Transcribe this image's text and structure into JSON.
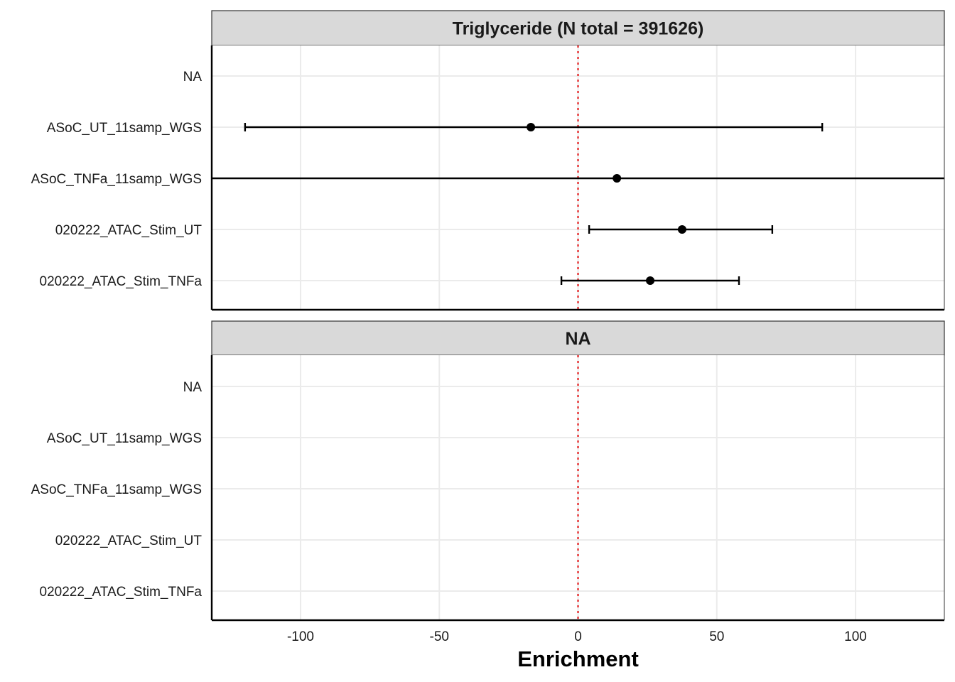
{
  "chart_data": {
    "type": "forest",
    "xlabel": "Enrichment",
    "xlim": [
      -132,
      132
    ],
    "xticks": [
      -100,
      -50,
      0,
      50,
      100
    ],
    "xtick_labels": [
      "-100",
      "-50",
      "0",
      "50",
      "100"
    ],
    "reference_line": {
      "x": 0,
      "color": "#e31a1c",
      "style": "dotted"
    },
    "categories": [
      "NA",
      "ASoC_UT_11samp_WGS",
      "ASoC_TNFa_11samp_WGS",
      "020222_ATAC_Stim_UT",
      "020222_ATAC_Stim_TNFa"
    ],
    "grid": true,
    "facets": [
      {
        "title": "Triglyceride (N total = 391626)",
        "points": [
          {
            "category": "ASoC_UT_11samp_WGS",
            "estimate": -17,
            "lower": -120,
            "upper": 88
          },
          {
            "category": "ASoC_TNFa_11samp_WGS",
            "estimate": 14,
            "lower": -200,
            "upper": 200
          },
          {
            "category": "020222_ATAC_Stim_UT",
            "estimate": 37.5,
            "lower": 4,
            "upper": 70
          },
          {
            "category": "020222_ATAC_Stim_TNFa",
            "estimate": 26,
            "lower": -6,
            "upper": 58
          }
        ]
      },
      {
        "title": "NA",
        "points": []
      }
    ],
    "colors": {
      "point": "#000000",
      "strip_fill": "#d9d9d9",
      "grid": "#ebebeb",
      "panel_border": "#333333"
    }
  }
}
